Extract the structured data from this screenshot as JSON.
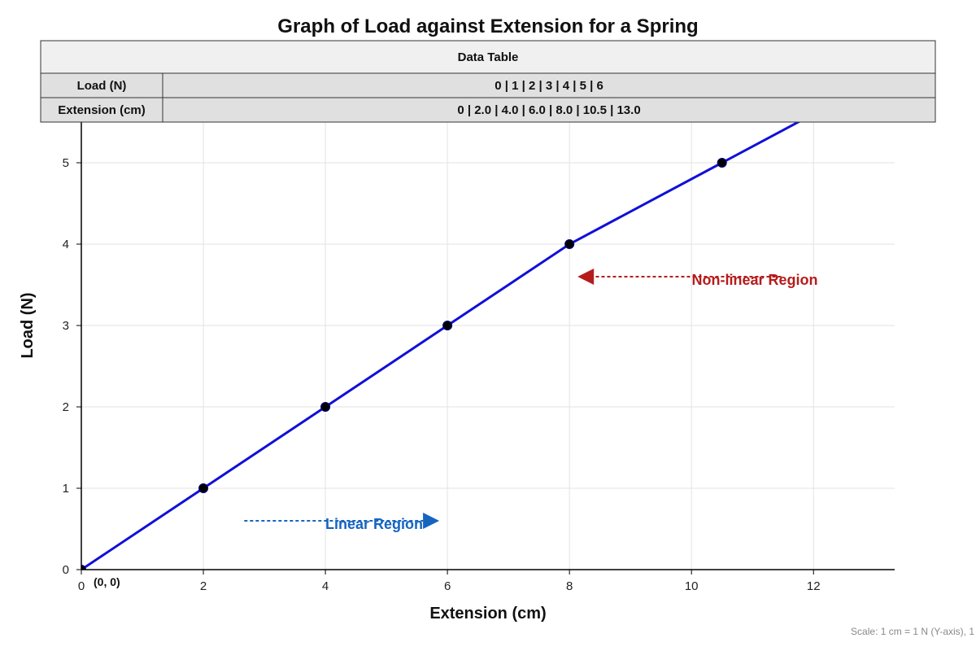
{
  "chart_data": {
    "type": "line",
    "title": "Graph of Load against Extension for a Spring",
    "xlabel": "Extension (cm)",
    "ylabel": "Load (N)",
    "xlim": [
      0,
      13.33
    ],
    "ylim": [
      0,
      5.5
    ],
    "x_ticks": [
      0,
      2,
      4,
      6,
      8,
      10,
      12
    ],
    "y_ticks": [
      0,
      1,
      2,
      3,
      4,
      5
    ],
    "grid": true,
    "series": [
      {
        "x": [
          0,
          2.0,
          4.0,
          6.0,
          8.0,
          10.5,
          13.0
        ],
        "y": [
          0,
          1,
          2,
          3,
          4,
          5,
          6
        ]
      }
    ],
    "line_color": "#1010d8",
    "point_color": "#000000",
    "annotations": [
      {
        "text": "Linear Region",
        "color": "#1565c0",
        "arrow": "right",
        "x_start": 2.67,
        "x_end": 5.6,
        "y": 0.6
      },
      {
        "text": "Non-linear Region",
        "color": "#b71c1c",
        "arrow": "left",
        "x_start": 11.47,
        "x_end": 8.4,
        "y": 3.6
      }
    ],
    "origin_label": "(0, 0)",
    "data_table": {
      "title": "Data Table",
      "rows": [
        {
          "label": "Load (N)",
          "values": "0 | 1 | 2 | 3 | 4 | 5 | 6"
        },
        {
          "label": "Extension (cm)",
          "values": "0 | 2.0 | 4.0 | 6.0 | 8.0 | 10.5 | 13.0"
        }
      ]
    },
    "scale_note": "Scale: 1 cm = 1 N (Y-axis), 1"
  }
}
